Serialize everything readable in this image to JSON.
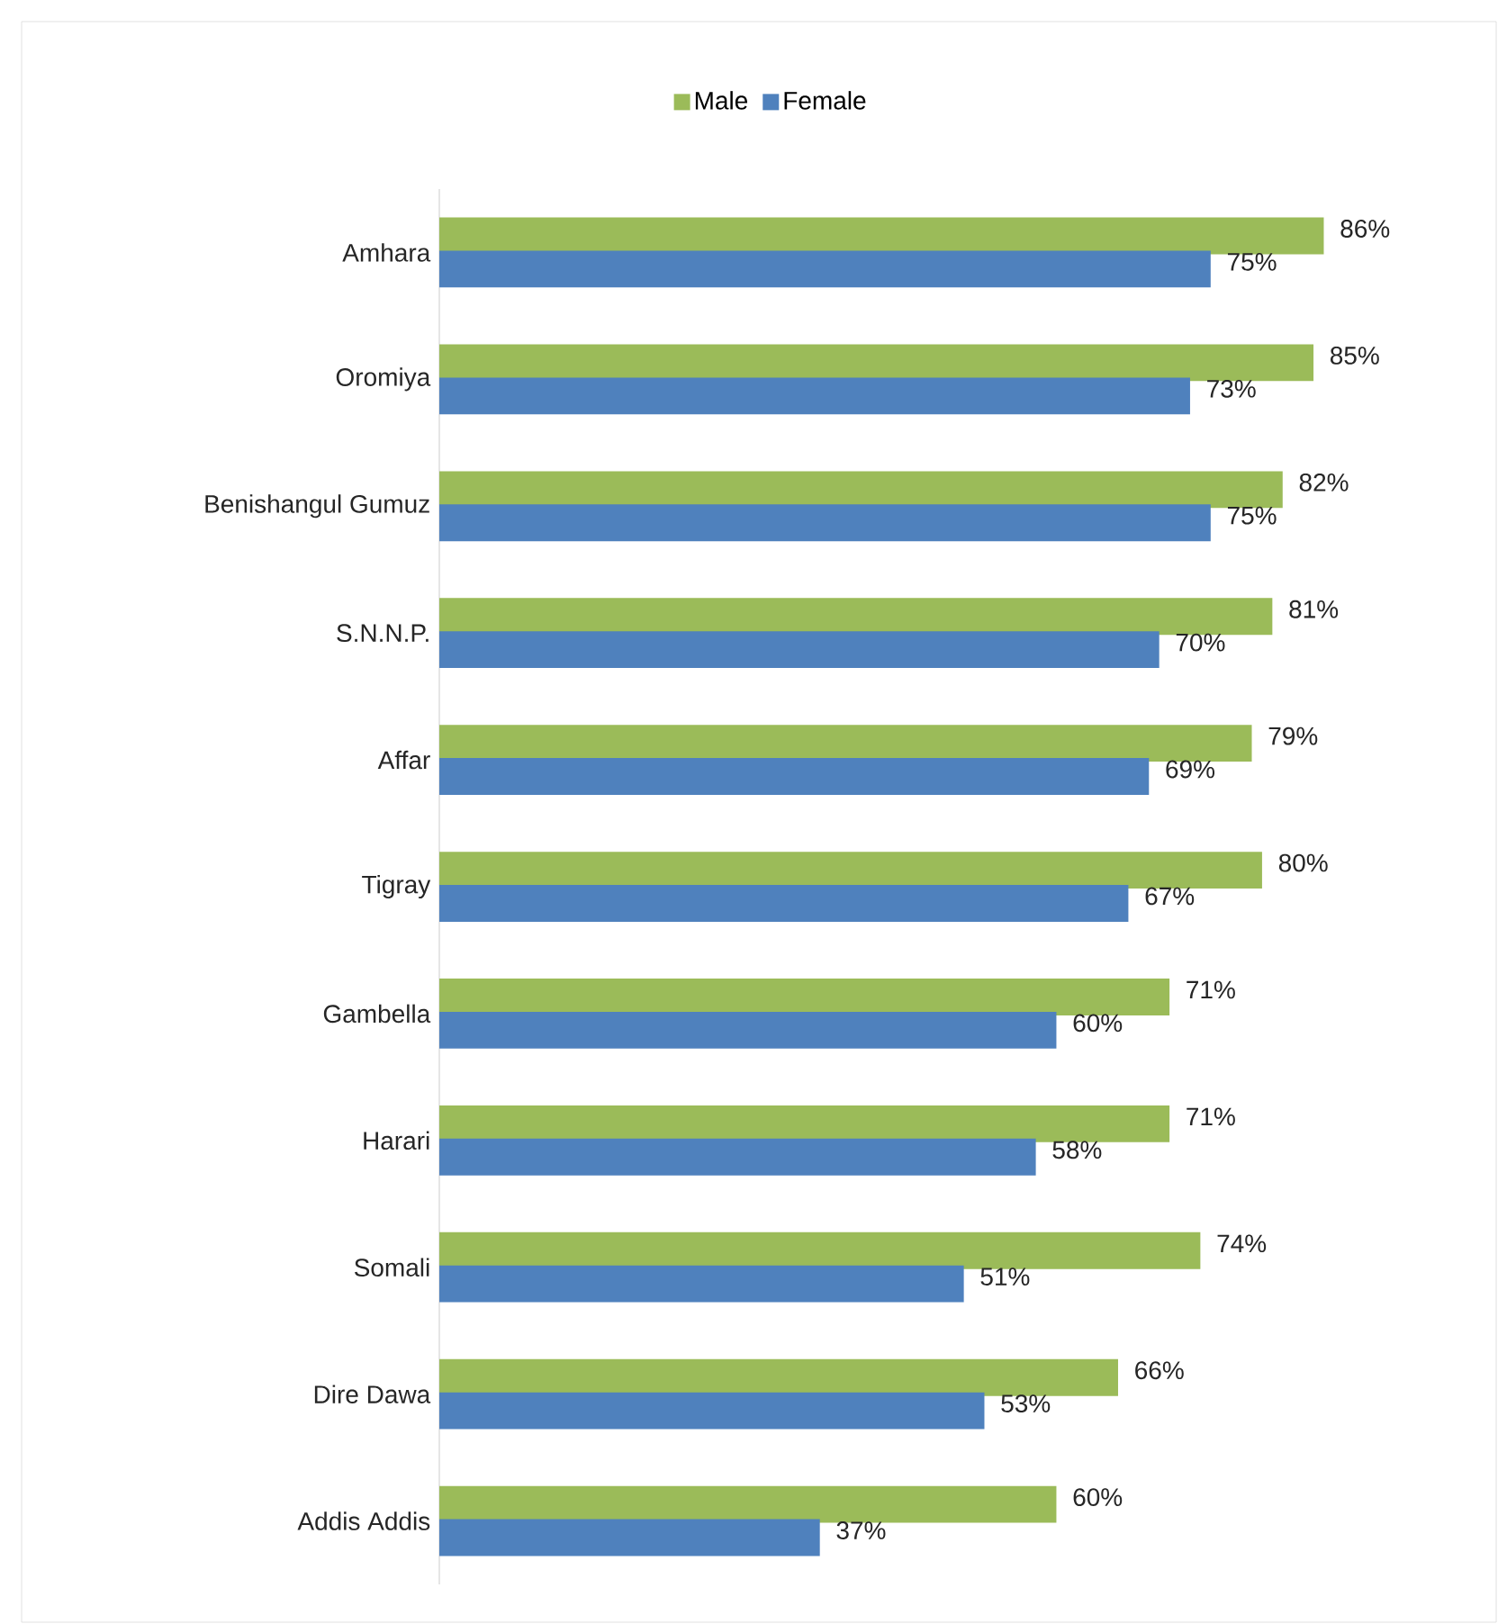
{
  "chart_data": {
    "type": "bar",
    "orientation": "horizontal",
    "legend": "top",
    "categories": [
      "Amhara",
      "Oromiya",
      "Benishangul Gumuz",
      "S.N.N.P.",
      "Affar",
      "Tigray",
      "Gambella",
      "Harari",
      "Somali",
      "Dire Dawa",
      "Addis Addis"
    ],
    "series": [
      {
        "name": "Male",
        "color": "#9bbb59",
        "values": [
          86,
          85,
          82,
          81,
          79,
          80,
          71,
          71,
          74,
          66,
          60
        ],
        "value_labels": [
          "86%",
          "85%",
          "82%",
          "81%",
          "79%",
          "80%",
          "71%",
          "71%",
          "74%",
          "66%",
          "60%"
        ]
      },
      {
        "name": "Female",
        "color": "#4f81bd",
        "values": [
          75,
          73,
          75,
          70,
          69,
          67,
          60,
          58,
          51,
          53,
          37
        ],
        "value_labels": [
          "75%",
          "73%",
          "75%",
          "70%",
          "69%",
          "67%",
          "60%",
          "58%",
          "51%",
          "53%",
          "37%"
        ]
      }
    ]
  }
}
